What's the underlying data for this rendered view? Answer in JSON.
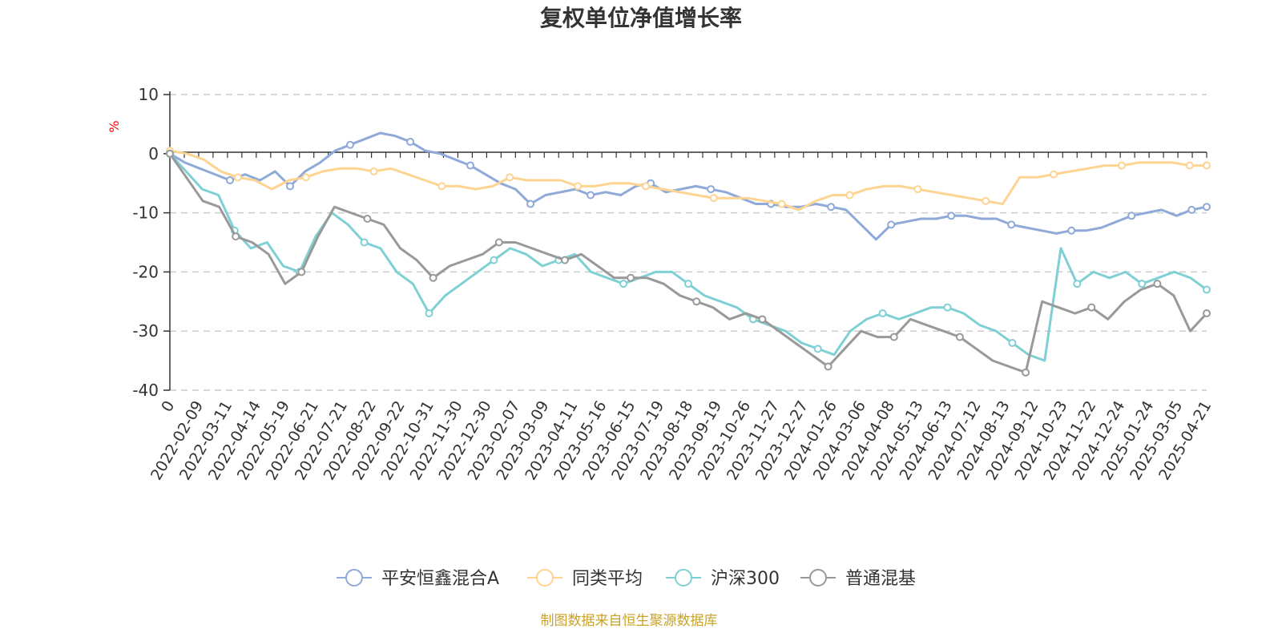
{
  "chart_data": {
    "type": "line",
    "title": "复权单位净值增长率",
    "ylabel": "%",
    "ylim": [
      -40,
      10
    ],
    "yticks": [
      10,
      0,
      -10,
      -20,
      -30,
      -40
    ],
    "x_ticks": [
      "0",
      "2022-02-09",
      "2022-03-11",
      "2022-04-14",
      "2022-05-19",
      "2022-06-21",
      "2022-07-21",
      "2022-08-22",
      "2022-09-22",
      "2022-10-31",
      "2022-11-30",
      "2022-12-30",
      "2023-02-07",
      "2023-03-09",
      "2023-04-11",
      "2023-05-16",
      "2023-06-15",
      "2023-07-19",
      "2023-08-18",
      "2023-09-19",
      "2023-10-26",
      "2023-11-27",
      "2023-12-27",
      "2024-01-26",
      "2024-03-06",
      "2024-04-08",
      "2024-05-13",
      "2024-06-13",
      "2024-07-12",
      "2024-08-13",
      "2024-09-12",
      "2024-10-23",
      "2024-11-22",
      "2024-12-24",
      "2025-01-24",
      "2025-03-05",
      "2025-04-21"
    ],
    "grid": true,
    "legend_position": "bottom",
    "series": [
      {
        "name": "平安恒鑫混合A",
        "color": "#8fa9d8",
        "values": [
          0,
          -1.5,
          -2.5,
          -3.5,
          -4.5,
          -3.5,
          -4.5,
          -3,
          -5.5,
          -3,
          -1.5,
          0.5,
          1.5,
          2.5,
          3.5,
          3,
          2,
          0.5,
          0,
          -1,
          -2,
          -3.5,
          -5,
          -6,
          -8.5,
          -7,
          -6.5,
          -6,
          -7,
          -6.5,
          -7,
          -5.5,
          -5,
          -6.5,
          -6,
          -5.5,
          -6,
          -6.5,
          -7.5,
          -8.5,
          -8.5,
          -9,
          -9,
          -8.5,
          -9,
          -9.5,
          -12,
          -14.5,
          -12,
          -11.5,
          -11,
          -11,
          -10.5,
          -10.5,
          -11,
          -11,
          -12,
          -12.5,
          -13,
          -13.5,
          -13,
          -13,
          -12.5,
          -11.5,
          -10.5,
          -10,
          -9.5,
          -10.5,
          -9.5,
          -9
        ]
      },
      {
        "name": "同类平均",
        "color": "#fdd491",
        "values": [
          0.5,
          0,
          -1,
          -3,
          -4,
          -4.5,
          -6,
          -4.5,
          -4,
          -3,
          -2.5,
          -2.5,
          -3,
          -2.5,
          -3.5,
          -4.5,
          -5.5,
          -5.5,
          -6,
          -5.5,
          -4,
          -4.5,
          -4.5,
          -4.5,
          -5.5,
          -5.5,
          -5,
          -5,
          -5.5,
          -6,
          -6.5,
          -7,
          -7.5,
          -7.5,
          -7.5,
          -8,
          -8.5,
          -9.5,
          -8,
          -7,
          -7,
          -6,
          -5.5,
          -5.5,
          -6,
          -6.5,
          -7,
          -7.5,
          -8,
          -8.5,
          -4,
          -4,
          -3.5,
          -3,
          -2.5,
          -2,
          -2,
          -1.5,
          -1.5,
          -1.5,
          -2,
          -2
        ]
      },
      {
        "name": "沪深300",
        "color": "#7fd0d4",
        "values": [
          0,
          -3,
          -6,
          -7,
          -13,
          -16,
          -15,
          -19,
          -20,
          -14,
          -10,
          -12,
          -15,
          -16,
          -20,
          -22,
          -27,
          -24,
          -22,
          -20,
          -18,
          -16,
          -17,
          -19,
          -18,
          -17,
          -20,
          -21,
          -22,
          -21,
          -20,
          -20,
          -22,
          -24,
          -25,
          -26,
          -28,
          -29,
          -30,
          -32,
          -33,
          -34,
          -30,
          -28,
          -27,
          -28,
          -27,
          -26,
          -26,
          -27,
          -29,
          -30,
          -32,
          -34,
          -35,
          -16,
          -22,
          -20,
          -21,
          -20,
          -22,
          -21,
          -20,
          -21,
          -23
        ]
      },
      {
        "name": "普通混基",
        "color": "#999999",
        "values": [
          0,
          -4,
          -8,
          -9,
          -14,
          -15,
          -17,
          -22,
          -20,
          -14,
          -9,
          -10,
          -11,
          -12,
          -16,
          -18,
          -21,
          -19,
          -18,
          -17,
          -15,
          -15,
          -16,
          -17,
          -18,
          -17,
          -19,
          -21,
          -21,
          -21,
          -22,
          -24,
          -25,
          -26,
          -28,
          -27,
          -28,
          -30,
          -32,
          -34,
          -36,
          -33,
          -30,
          -31,
          -31,
          -28,
          -29,
          -30,
          -31,
          -33,
          -35,
          -36,
          -37,
          -25,
          -26,
          -27,
          -26,
          -28,
          -25,
          -23,
          -22,
          -24,
          -30,
          -27
        ]
      }
    ],
    "source_note": "制图数据来自恒生聚源数据库"
  }
}
